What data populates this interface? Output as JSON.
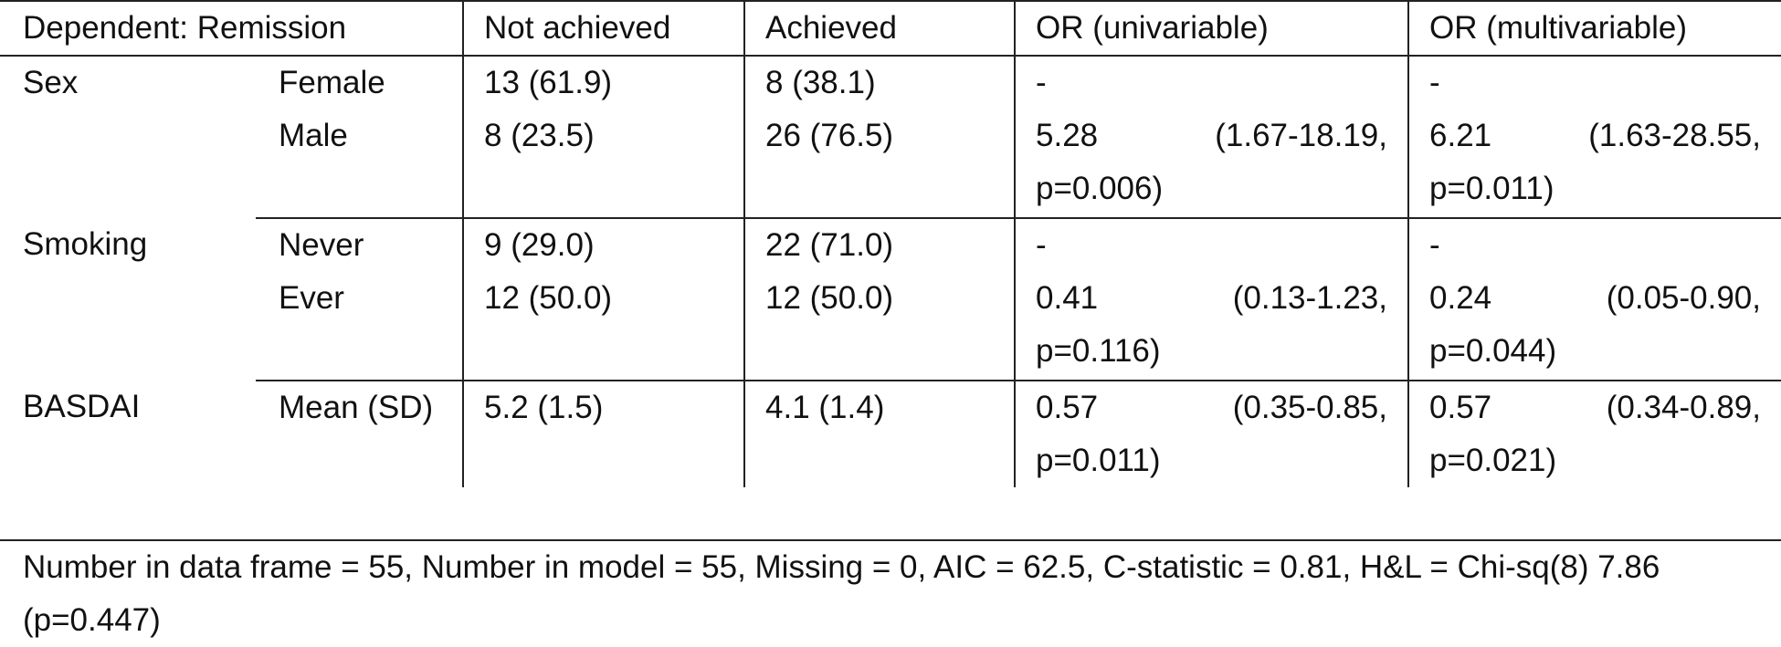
{
  "table": {
    "header": [
      "Dependent: Remission",
      "Not achieved",
      "Achieved",
      "OR (univariable)",
      "OR (multivariable)"
    ],
    "groups": [
      {
        "label": "Sex",
        "rows": [
          [
            "Female",
            "13 (61.9)",
            "8 (38.1)",
            "-",
            "-"
          ],
          [
            "Male",
            "8 (23.5)",
            "26 (76.5)",
            "5.28 (1.67-18.19, p=0.006)",
            "6.21 (1.63-28.55, p=0.011)"
          ]
        ]
      },
      {
        "label": "Smoking",
        "rows": [
          [
            "Never",
            "9 (29.0)",
            "22 (71.0)",
            "-",
            "-"
          ],
          [
            "Ever",
            "12 (50.0)",
            "12 (50.0)",
            "0.41 (0.13-1.23, p=0.116)",
            "0.24 (0.05-0.90, p=0.044)"
          ]
        ]
      },
      {
        "label": "BASDAI",
        "rows": [
          [
            "Mean (SD)",
            "5.2 (1.5)",
            "4.1 (1.4)",
            "0.57 (0.35-0.85, p=0.011)",
            "0.57 (0.34-0.89, p=0.021)"
          ]
        ]
      }
    ]
  },
  "footer": "Number in data frame = 55, Number in model = 55, Missing = 0, AIC = 62.5, C-statistic = 0.81, H&L = Chi-sq(8) 7.86 (p=0.447)"
}
